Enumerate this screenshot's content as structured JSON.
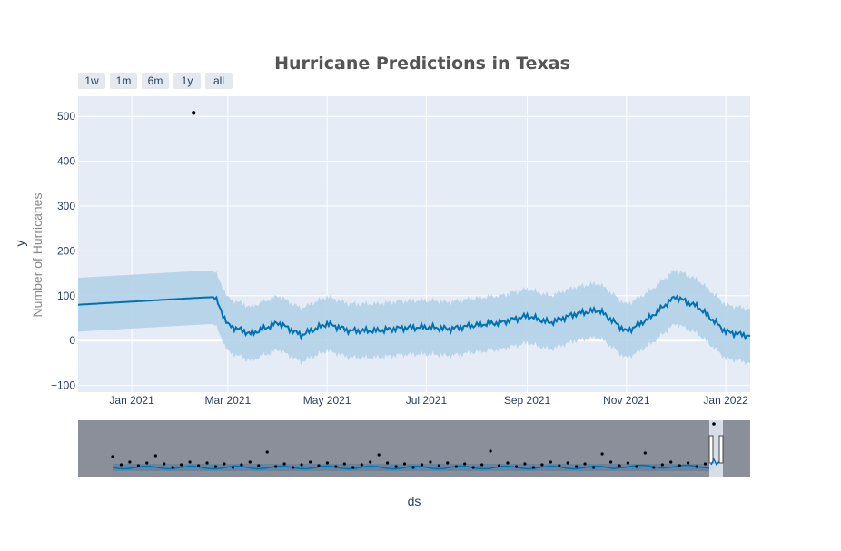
{
  "chart_data": {
    "type": "line",
    "title": "Hurricane Predictions in Texas",
    "ylabel": "y",
    "ylabel_secondary": "Number of Hurricanes",
    "xlabel": "ds",
    "range_buttons": [
      "1w",
      "1m",
      "6m",
      "1y",
      "all"
    ],
    "x_tick_labels": [
      "Jan 2021",
      "Mar 2021",
      "May 2021",
      "Jul 2021",
      "Sep 2021",
      "Nov 2021",
      "Jan 2022"
    ],
    "x_tick_dates": [
      "2021-01-01",
      "2021-03-01",
      "2021-05-01",
      "2021-07-01",
      "2021-09-01",
      "2021-11-01",
      "2022-01-01"
    ],
    "xlim": [
      "2020-11-29",
      "2022-01-16"
    ],
    "y_ticks": [
      -100,
      0,
      100,
      200,
      300,
      400,
      500
    ],
    "ylim": [
      -115,
      545
    ],
    "grid": true,
    "colors": {
      "plot_bg": "#e5ecf6",
      "grid": "#ffffff",
      "forecast_line": "#0072b2",
      "uncertainty_band": "#b3d1e8",
      "observed_points": "#000000",
      "rangeslider_bg": "#8a8f99"
    },
    "series": [
      {
        "name": "yhat",
        "kind": "line",
        "x": [
          "2020-11-29",
          "2021-02-14",
          "2021-02-21",
          "2021-03-01",
          "2021-03-15",
          "2021-04-01",
          "2021-04-15",
          "2021-05-01",
          "2021-05-15",
          "2021-06-01",
          "2021-06-15",
          "2021-07-01",
          "2021-07-15",
          "2021-08-01",
          "2021-08-15",
          "2021-09-01",
          "2021-09-15",
          "2021-10-01",
          "2021-10-15",
          "2021-11-01",
          "2021-11-15",
          "2021-12-01",
          "2021-12-15",
          "2022-01-01",
          "2022-01-16"
        ],
        "y": [
          80,
          96,
          97,
          35,
          15,
          40,
          12,
          38,
          22,
          22,
          28,
          30,
          26,
          35,
          40,
          55,
          40,
          60,
          68,
          20,
          50,
          98,
          75,
          20,
          10
        ]
      },
      {
        "name": "yhat_upper",
        "kind": "band_upper",
        "x": [
          "2020-11-29",
          "2021-02-14",
          "2021-02-21",
          "2021-03-01",
          "2021-03-15",
          "2021-04-01",
          "2021-04-15",
          "2021-05-01",
          "2021-05-15",
          "2021-06-01",
          "2021-06-15",
          "2021-07-01",
          "2021-07-15",
          "2021-08-01",
          "2021-08-15",
          "2021-09-01",
          "2021-09-15",
          "2021-10-01",
          "2021-10-15",
          "2021-11-01",
          "2021-11-15",
          "2021-12-01",
          "2021-12-15",
          "2022-01-01",
          "2022-01-16"
        ],
        "y": [
          140,
          156,
          155,
          95,
          75,
          100,
          72,
          98,
          82,
          82,
          88,
          90,
          86,
          95,
          100,
          115,
          100,
          120,
          128,
          80,
          110,
          158,
          135,
          80,
          70
        ]
      },
      {
        "name": "yhat_lower",
        "kind": "band_lower",
        "x": [
          "2020-11-29",
          "2021-02-14",
          "2021-02-21",
          "2021-03-01",
          "2021-03-15",
          "2021-04-01",
          "2021-04-15",
          "2021-05-01",
          "2021-05-15",
          "2021-06-01",
          "2021-06-15",
          "2021-07-01",
          "2021-07-15",
          "2021-08-01",
          "2021-08-15",
          "2021-09-01",
          "2021-09-15",
          "2021-10-01",
          "2021-10-15",
          "2021-11-01",
          "2021-11-15",
          "2021-12-01",
          "2021-12-15",
          "2022-01-01",
          "2022-01-16"
        ],
        "y": [
          20,
          36,
          37,
          -25,
          -45,
          -20,
          -48,
          -22,
          -38,
          -38,
          -32,
          -30,
          -34,
          -25,
          -20,
          -5,
          -20,
          0,
          8,
          -40,
          -10,
          38,
          15,
          -40,
          -50
        ]
      },
      {
        "name": "observed",
        "kind": "points",
        "x": [
          "2021-02-08"
        ],
        "y": [
          508
        ]
      }
    ],
    "rangeslider": true
  }
}
